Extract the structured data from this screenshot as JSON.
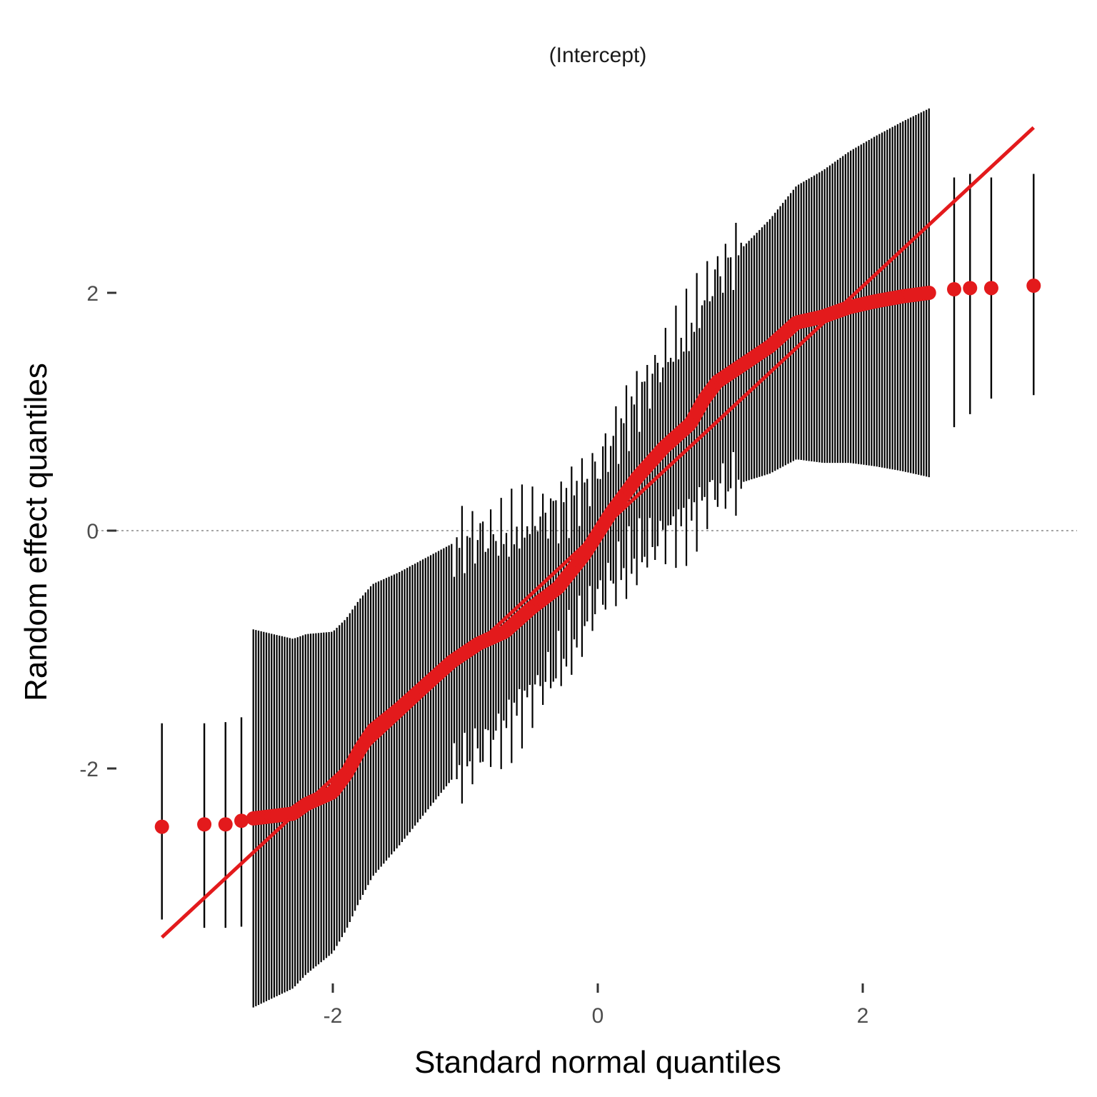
{
  "chart_data": {
    "type": "scatter",
    "title": "(Intercept)",
    "xlabel": "Standard normal quantiles",
    "ylabel": "Random effect quantiles",
    "xlim": [
      -3.5,
      3.6
    ],
    "ylim": [
      -3.5,
      3.8
    ],
    "x_ticks": [
      -2,
      0,
      2
    ],
    "x_tick_labels": [
      "-2",
      "0",
      "2"
    ],
    "y_ticks": [
      -2,
      0,
      2
    ],
    "y_tick_labels": [
      "-2",
      "0",
      "2"
    ],
    "reference_hline": 0,
    "grid": false,
    "legend": "none",
    "colors": {
      "points": "#e31a1c",
      "line": "#e31a1c",
      "errorbars": "#000000",
      "zero_line": "#a6a6a6"
    },
    "qq_line": {
      "x": [
        -3.29,
        3.29
      ],
      "y": [
        -3.42,
        3.39
      ]
    },
    "outer_points": [
      {
        "x": -3.29,
        "y": -2.49,
        "ymin": -3.27,
        "ymax": -1.62
      },
      {
        "x": -2.97,
        "y": -2.47,
        "ymin": -3.34,
        "ymax": -1.62
      },
      {
        "x": -2.81,
        "y": -2.47,
        "ymin": -3.34,
        "ymax": -1.61
      },
      {
        "x": -2.69,
        "y": -2.44,
        "ymin": -3.33,
        "ymax": -1.57
      },
      {
        "x": 2.69,
        "y": 2.03,
        "ymin": 0.87,
        "ymax": 2.97
      },
      {
        "x": 2.81,
        "y": 2.04,
        "ymin": 0.98,
        "ymax": 3.0
      },
      {
        "x": 2.97,
        "y": 2.04,
        "ymin": 1.11,
        "ymax": 2.97
      },
      {
        "x": 3.29,
        "y": 2.06,
        "ymin": 1.14,
        "ymax": 3.0
      }
    ],
    "quantile_curve": {
      "x": [
        -2.6,
        -2.3,
        -2.2,
        -2.0,
        -1.9,
        -1.8,
        -1.7,
        -1.5,
        -1.3,
        -1.1,
        -0.9,
        -0.7,
        -0.5,
        -0.3,
        -0.1,
        0.1,
        0.3,
        0.5,
        0.7,
        0.8,
        0.9,
        1.1,
        1.3,
        1.5,
        1.7,
        1.9,
        2.1,
        2.3,
        2.5
      ],
      "y": [
        -2.42,
        -2.38,
        -2.3,
        -2.2,
        -2.05,
        -1.85,
        -1.68,
        -1.5,
        -1.3,
        -1.1,
        -0.95,
        -0.85,
        -0.65,
        -0.48,
        -0.2,
        0.15,
        0.45,
        0.7,
        0.9,
        1.1,
        1.25,
        1.4,
        1.55,
        1.75,
        1.8,
        1.88,
        1.93,
        1.97,
        2.0
      ]
    }
  }
}
